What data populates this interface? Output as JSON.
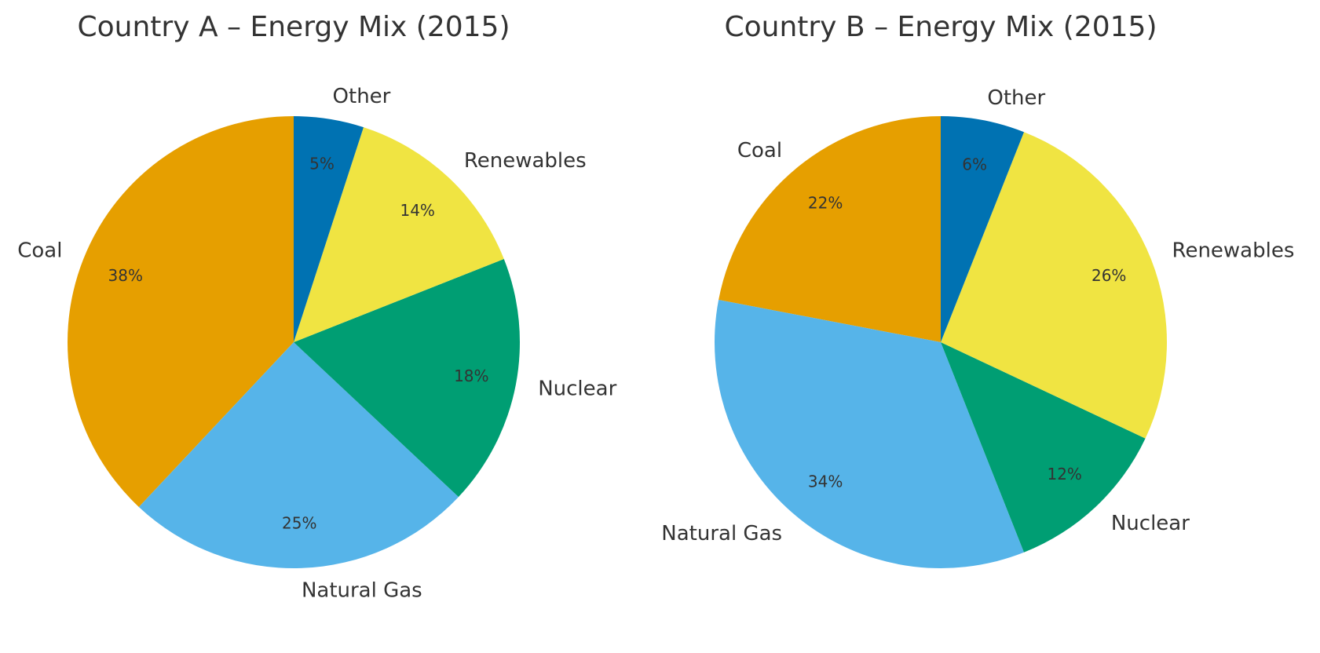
{
  "chart_data": [
    {
      "type": "pie",
      "title": "Country A – Energy Mix (2015)",
      "categories": [
        "Coal",
        "Natural Gas",
        "Nuclear",
        "Renewables",
        "Other"
      ],
      "values": [
        38,
        25,
        18,
        14,
        5
      ],
      "pct_labels": [
        "38%",
        "25%",
        "18%",
        "14%",
        "5%"
      ],
      "colors": [
        "#E69F00",
        "#56B4E9",
        "#009E73",
        "#F0E442",
        "#0072B2"
      ],
      "start_angle": 90,
      "direction": "counterclockwise"
    },
    {
      "type": "pie",
      "title": "Country B – Energy Mix (2015)",
      "categories": [
        "Coal",
        "Natural Gas",
        "Nuclear",
        "Renewables",
        "Other"
      ],
      "values": [
        22,
        34,
        12,
        26,
        6
      ],
      "pct_labels": [
        "22%",
        "34%",
        "12%",
        "26%",
        "6%"
      ],
      "colors": [
        "#E69F00",
        "#56B4E9",
        "#009E73",
        "#F0E442",
        "#0072B2"
      ],
      "start_angle": 90,
      "direction": "counterclockwise"
    }
  ]
}
